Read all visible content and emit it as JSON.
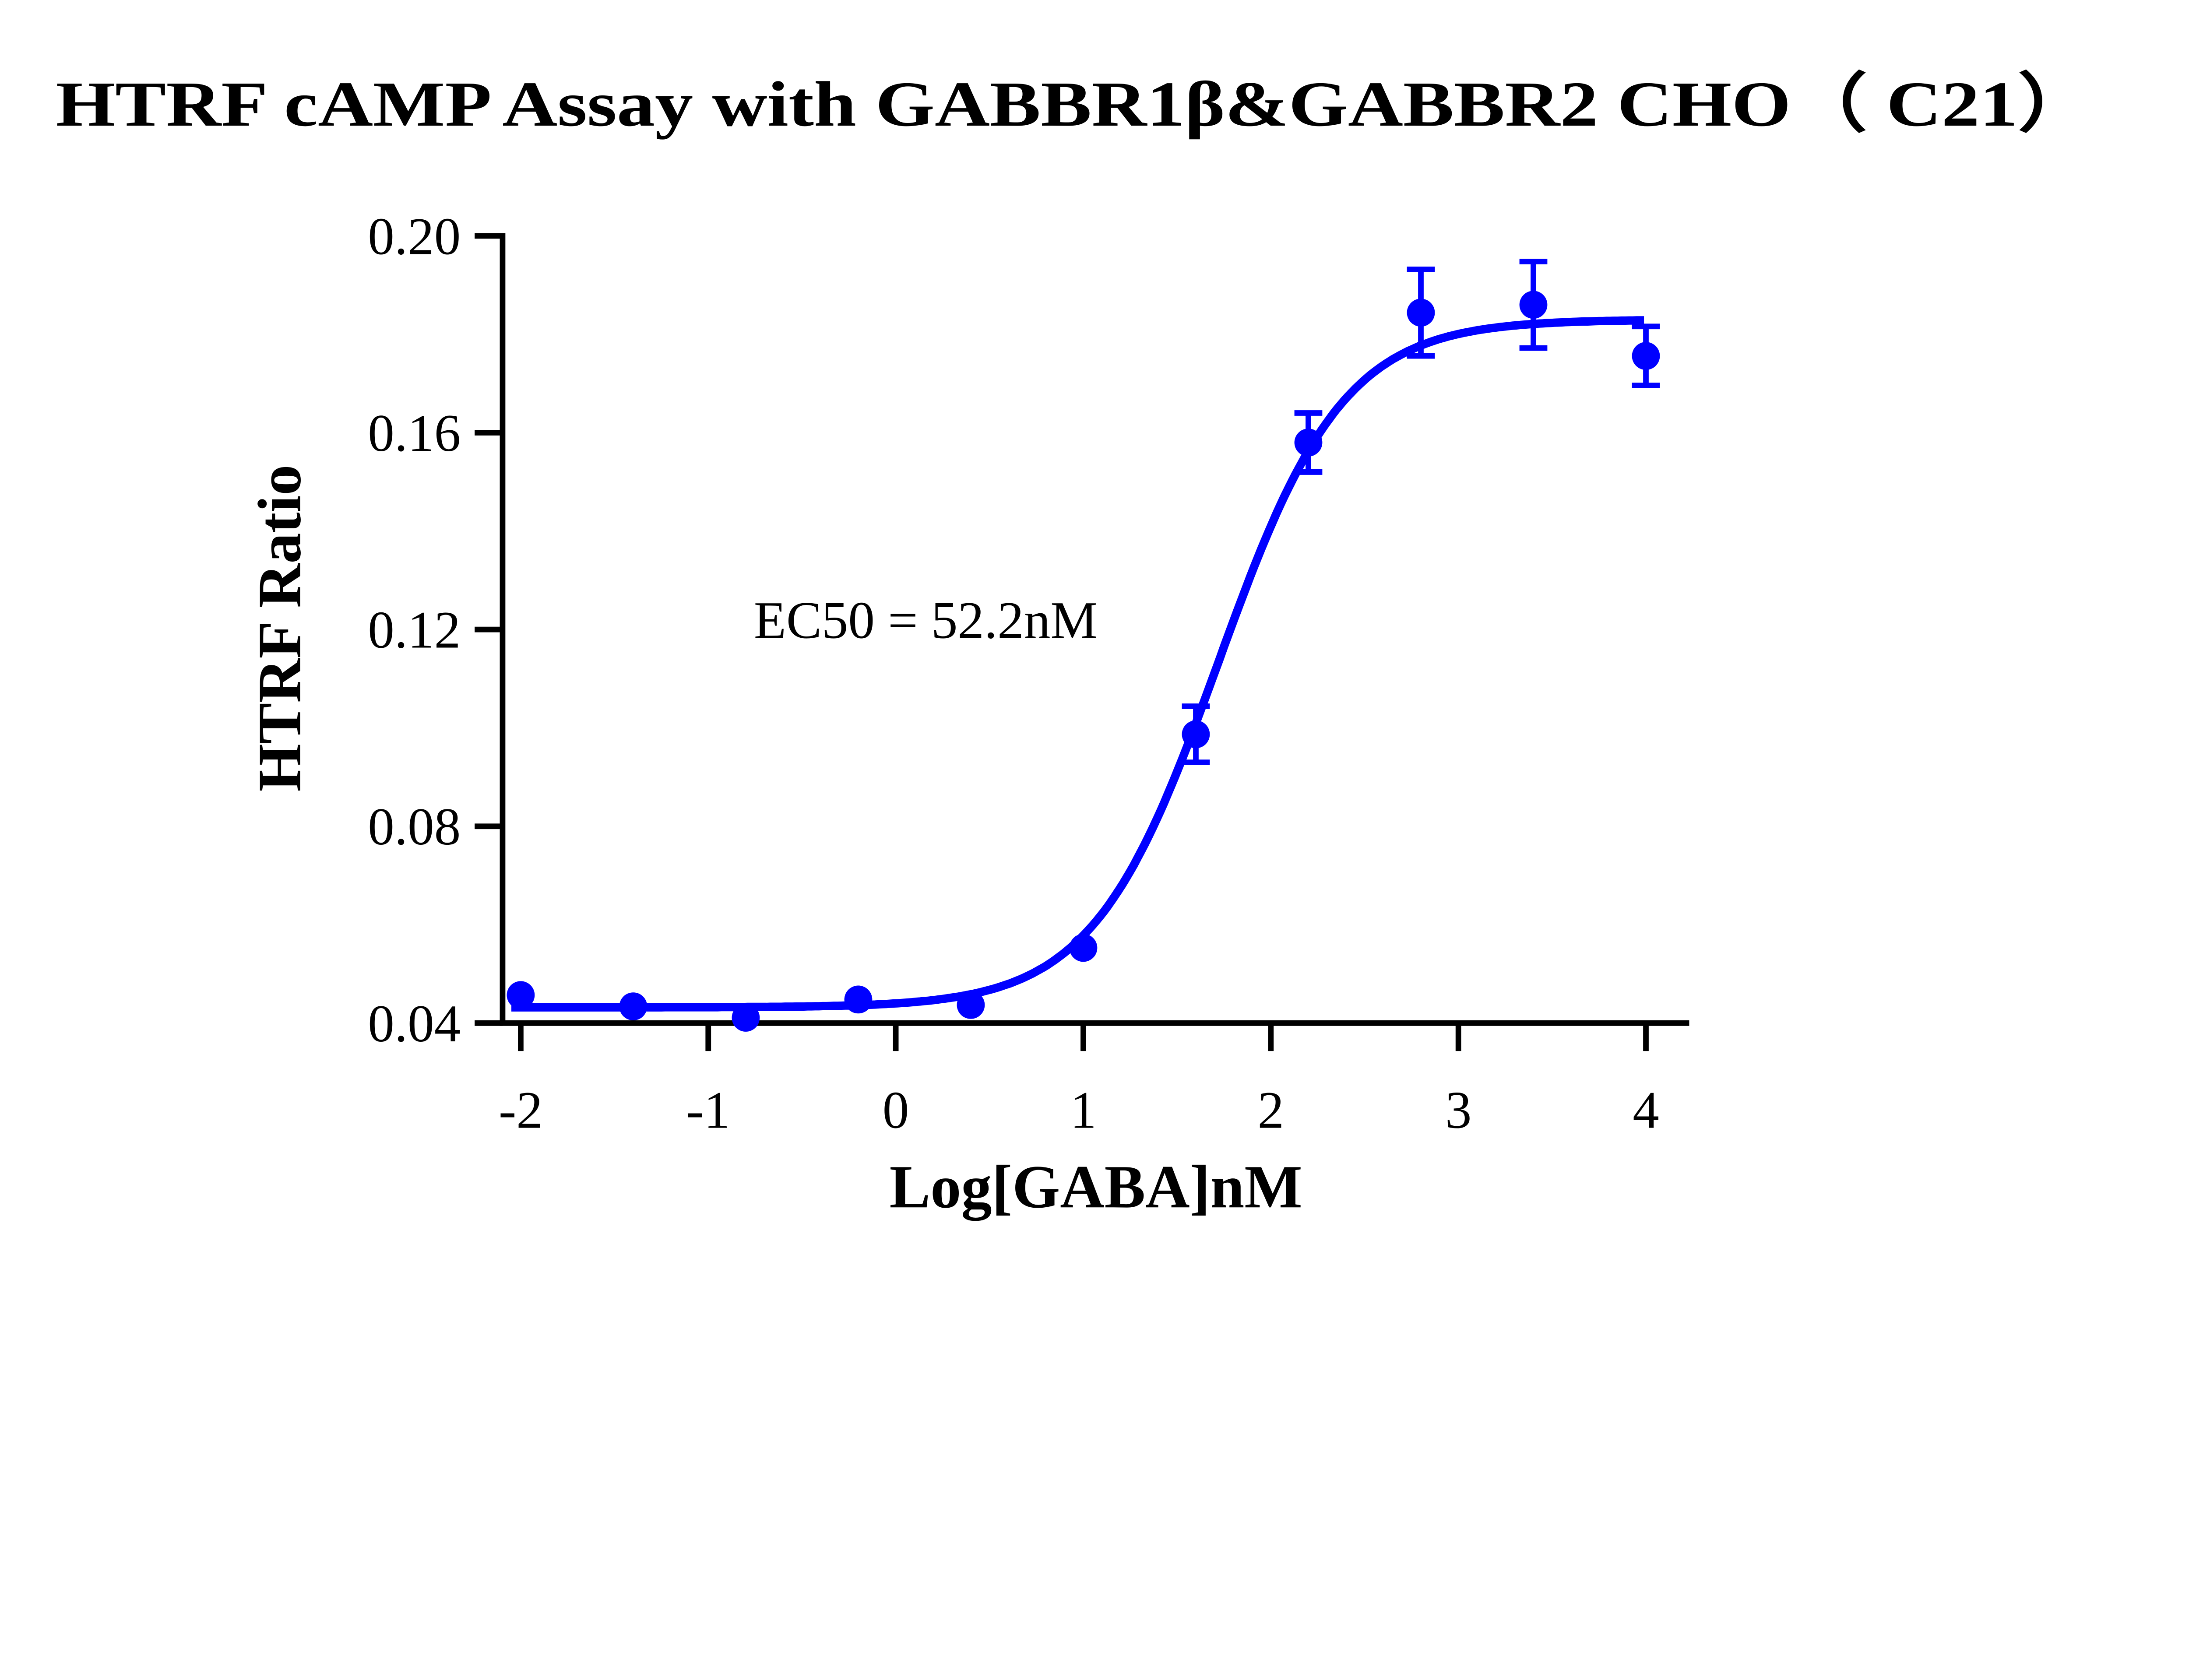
{
  "chart_data": {
    "type": "scatter",
    "title": "HTRF cAMP Assay with GABBR1β&GABBR2 CHO（ C21）",
    "xlabel": "Log[GABA]nM",
    "ylabel": "HTRF Ratio",
    "xlim": [
      -2.1,
      4.2
    ],
    "ylim": [
      0.04,
      0.2
    ],
    "xticks": [
      "-2",
      "-1",
      "0",
      "1",
      "2",
      "3",
      "4"
    ],
    "yticks": [
      "0.04",
      "0.08",
      "0.12",
      "0.16",
      "0.20"
    ],
    "grid": false,
    "color": "#0000ff",
    "annotation": "EC50 = 52.2nM",
    "points": {
      "x": [
        -2.0,
        -1.4,
        -0.8,
        -0.2,
        0.4,
        1.0,
        1.6,
        2.2,
        2.8,
        3.4,
        4.0
      ],
      "y": [
        0.0457,
        0.0434,
        0.0411,
        0.0448,
        0.0437,
        0.0553,
        0.0987,
        0.158,
        0.1844,
        0.186,
        0.1756
      ],
      "error": [
        0.0005,
        0.0005,
        0.0005,
        0.0005,
        0.0005,
        0.001,
        0.0057,
        0.006,
        0.0088,
        0.0088,
        0.006
      ]
    },
    "fit": {
      "model": "four-parameter logistic",
      "bottom": 0.0432,
      "top": 0.183,
      "logEC50": 1.7177,
      "hill_slope": 1.3
    }
  }
}
